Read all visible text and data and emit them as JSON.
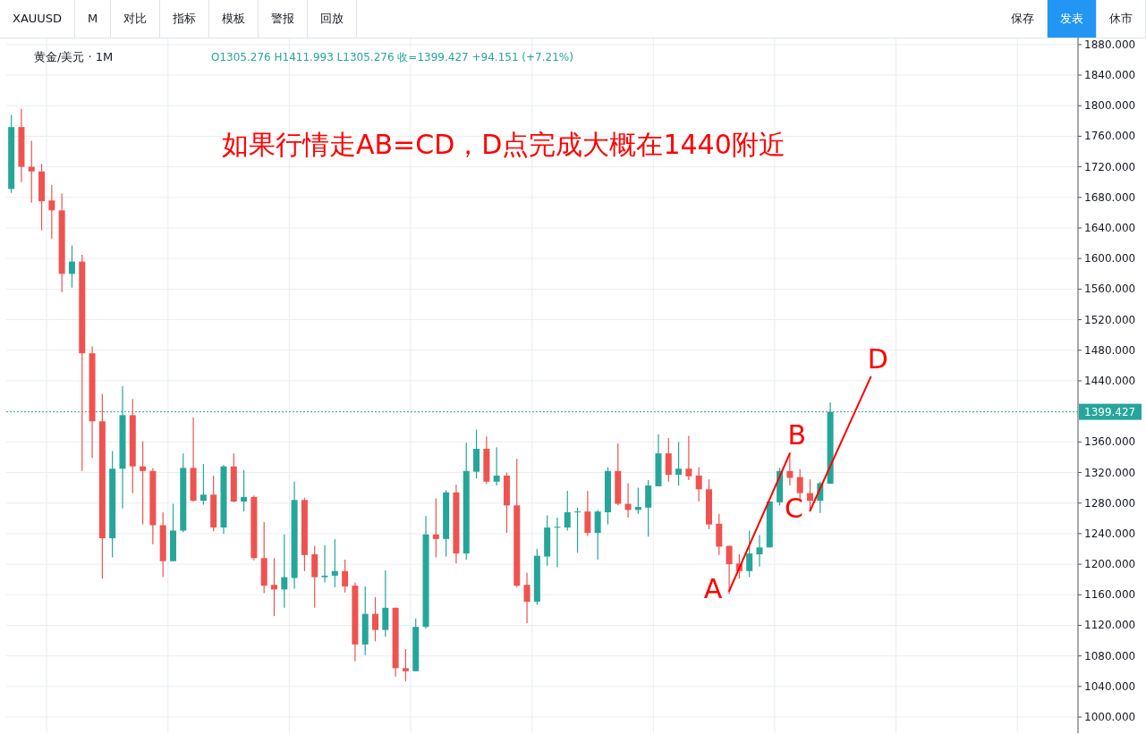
{
  "chart_data": {
    "type": "candlestick",
    "title": "如果行情走AB=CD，D点完成大概在1440附近",
    "subtitle": "黄金/美元 · 1M",
    "categories": [
      null,
      null,
      null,
      null,
      null,
      null,
      null,
      null,
      null,
      null,
      null,
      null,
      null,
      null,
      null,
      null,
      null,
      null,
      null,
      null,
      null,
      null,
      null,
      null,
      null,
      null,
      null,
      null,
      null,
      null,
      null,
      null,
      null,
      null,
      null,
      null,
      null,
      null,
      null,
      null,
      null,
      null,
      null,
      null,
      null,
      null,
      null,
      null,
      null,
      null,
      null,
      null,
      null,
      null,
      null,
      null,
      null,
      null,
      null,
      null,
      null,
      null,
      null,
      null,
      null,
      null,
      null,
      null,
      null,
      null,
      null,
      null,
      null,
      null,
      null,
      null,
      null,
      null,
      null,
      null,
      null,
      null,
      null,
      null,
      null,
      null,
      null,
      null,
      null,
      null,
      null,
      null,
      null,
      null,
      null,
      null,
      null,
      null,
      null,
      null,
      null,
      null,
      null,
      null,
      null,
      null
    ],
    "ohlc": [
      [
        1691,
        1788,
        1686,
        1772
      ],
      [
        1772,
        1796,
        1700,
        1720
      ],
      [
        1720,
        1754,
        1673,
        1714
      ],
      [
        1714,
        1724,
        1637,
        1675
      ],
      [
        1676,
        1696,
        1626,
        1663
      ],
      [
        1663,
        1685,
        1556,
        1580
      ],
      [
        1580,
        1617,
        1562,
        1596
      ],
      [
        1596,
        1605,
        1322,
        1476
      ],
      [
        1476,
        1485,
        1339,
        1387
      ],
      [
        1387,
        1423,
        1181,
        1234
      ],
      [
        1234,
        1348,
        1209,
        1325
      ],
      [
        1325,
        1433,
        1273,
        1395
      ],
      [
        1395,
        1416,
        1293,
        1328
      ],
      [
        1328,
        1361,
        1252,
        1322
      ],
      [
        1322,
        1326,
        1226,
        1251
      ],
      [
        1251,
        1268,
        1183,
        1204
      ],
      [
        1204,
        1279,
        1204,
        1244
      ],
      [
        1244,
        1345,
        1242,
        1326
      ],
      [
        1326,
        1392,
        1282,
        1283
      ],
      [
        1283,
        1331,
        1278,
        1291
      ],
      [
        1291,
        1316,
        1243,
        1248
      ],
      [
        1248,
        1330,
        1240,
        1328
      ],
      [
        1328,
        1345,
        1281,
        1282
      ],
      [
        1282,
        1323,
        1269,
        1288
      ],
      [
        1288,
        1290,
        1205,
        1208
      ],
      [
        1208,
        1255,
        1162,
        1172
      ],
      [
        1173,
        1208,
        1132,
        1167
      ],
      [
        1167,
        1239,
        1143,
        1183
      ],
      [
        1182,
        1308,
        1168,
        1284
      ],
      [
        1284,
        1287,
        1191,
        1212
      ],
      [
        1213,
        1224,
        1143,
        1183
      ],
      [
        1183,
        1225,
        1176,
        1185
      ],
      [
        1185,
        1233,
        1170,
        1191
      ],
      [
        1191,
        1206,
        1163,
        1171
      ],
      [
        1172,
        1176,
        1073,
        1095
      ],
      [
        1095,
        1171,
        1081,
        1135
      ],
      [
        1135,
        1157,
        1099,
        1114
      ],
      [
        1114,
        1192,
        1105,
        1143
      ],
      [
        1143,
        1143,
        1053,
        1064
      ],
      [
        1064,
        1089,
        1047,
        1060
      ],
      [
        1060,
        1129,
        1060,
        1118
      ],
      [
        1118,
        1263,
        1116,
        1239
      ],
      [
        1239,
        1286,
        1209,
        1233
      ],
      [
        1233,
        1297,
        1210,
        1294
      ],
      [
        1294,
        1304,
        1201,
        1214
      ],
      [
        1214,
        1359,
        1206,
        1322
      ],
      [
        1321,
        1376,
        1312,
        1351
      ],
      [
        1351,
        1367,
        1305,
        1308
      ],
      [
        1308,
        1353,
        1303,
        1316
      ],
      [
        1316,
        1320,
        1241,
        1277
      ],
      [
        1277,
        1338,
        1170,
        1172
      ],
      [
        1173,
        1189,
        1123,
        1151
      ],
      [
        1151,
        1220,
        1147,
        1211
      ],
      [
        1210,
        1264,
        1198,
        1248
      ],
      [
        1248,
        1261,
        1196,
        1249
      ],
      [
        1248,
        1296,
        1244,
        1268
      ],
      [
        1268,
        1274,
        1215,
        1269
      ],
      [
        1269,
        1296,
        1237,
        1241
      ],
      [
        1241,
        1271,
        1206,
        1269
      ],
      [
        1268,
        1327,
        1252,
        1322
      ],
      [
        1322,
        1358,
        1277,
        1279
      ],
      [
        1279,
        1306,
        1261,
        1271
      ],
      [
        1271,
        1300,
        1266,
        1275
      ],
      [
        1274,
        1310,
        1236,
        1303
      ],
      [
        1302,
        1370,
        1302,
        1345
      ],
      [
        1345,
        1365,
        1308,
        1317
      ],
      [
        1317,
        1360,
        1303,
        1325
      ],
      [
        1325,
        1368,
        1310,
        1315
      ],
      [
        1316,
        1327,
        1282,
        1298
      ],
      [
        1298,
        1311,
        1246,
        1252
      ],
      [
        1253,
        1266,
        1212,
        1223
      ],
      [
        1224,
        1224,
        1161,
        1200
      ],
      [
        1201,
        1213,
        1181,
        1191
      ],
      [
        1191,
        1244,
        1183,
        1214
      ],
      [
        1213,
        1238,
        1197,
        1222
      ],
      [
        1222,
        1282,
        1222,
        1282
      ],
      [
        1281,
        1326,
        1277,
        1322
      ],
      [
        1322,
        1343,
        1303,
        1313
      ],
      [
        1314,
        1324,
        1281,
        1293
      ],
      [
        1293,
        1311,
        1270,
        1283
      ],
      [
        1283,
        1308,
        1267,
        1306
      ],
      [
        1305.276,
        1411.993,
        1305.276,
        1399.427
      ],
      null,
      null,
      null,
      null,
      null,
      null,
      null,
      null,
      null,
      null,
      null,
      null,
      null,
      null,
      null,
      null,
      null,
      null,
      null,
      null,
      null,
      null,
      null,
      null
    ],
    "series": [
      {
        "type": "line",
        "color": "#ff0000",
        "values": [
          null,
          null,
          null,
          null,
          null,
          null,
          null,
          null,
          null,
          null,
          null,
          null,
          null,
          null,
          null,
          null,
          null,
          null,
          null,
          null,
          null,
          null,
          null,
          null,
          null,
          null,
          null,
          null,
          null,
          null,
          null,
          null,
          null,
          null,
          null,
          null,
          null,
          null,
          null,
          null,
          null,
          null,
          null,
          null,
          null,
          null,
          null,
          null,
          null,
          null,
          null,
          null,
          null,
          null,
          null,
          null,
          null,
          null,
          null,
          null,
          null,
          null,
          null,
          null,
          null,
          null,
          null,
          null,
          null,
          null,
          null,
          1165,
          null,
          null,
          null,
          null,
          null,
          1345,
          null,
          null,
          null,
          null,
          null,
          null,
          null,
          null,
          null,
          null,
          null,
          null,
          null,
          null,
          null,
          null,
          null,
          null,
          null,
          null,
          null,
          null,
          null,
          null,
          null,
          null,
          null,
          null
        ]
      },
      {
        "type": "line",
        "color": "#ff0000",
        "values": [
          null,
          null,
          null,
          null,
          null,
          null,
          null,
          null,
          null,
          null,
          null,
          null,
          null,
          null,
          null,
          null,
          null,
          null,
          null,
          null,
          null,
          null,
          null,
          null,
          null,
          null,
          null,
          null,
          null,
          null,
          null,
          null,
          null,
          null,
          null,
          null,
          null,
          null,
          null,
          null,
          null,
          null,
          null,
          null,
          null,
          null,
          null,
          null,
          null,
          null,
          null,
          null,
          null,
          null,
          null,
          null,
          null,
          null,
          null,
          null,
          null,
          null,
          null,
          null,
          null,
          null,
          null,
          null,
          null,
          null,
          null,
          null,
          null,
          null,
          null,
          null,
          null,
          null,
          null,
          1270,
          null,
          null,
          null,
          null,
          null,
          1445,
          null,
          null,
          null,
          null,
          null,
          null,
          null,
          null,
          null,
          null,
          null,
          null,
          null,
          null,
          null,
          null,
          null,
          null,
          null,
          null
        ]
      }
    ],
    "ylim": [
      979,
      1888
    ],
    "yticks": [
      {
        "value": 1000,
        "label": "1000.000"
      },
      {
        "value": 1040,
        "label": "1040.000"
      },
      {
        "value": 1080,
        "label": "1080.000"
      },
      {
        "value": 1120,
        "label": "1120.000"
      },
      {
        "value": 1160,
        "label": "1160.000"
      },
      {
        "value": 1200,
        "label": "1200.000"
      },
      {
        "value": 1240,
        "label": "1240.000"
      },
      {
        "value": 1280,
        "label": "1280.000"
      },
      {
        "value": 1320,
        "label": "1320.000"
      },
      {
        "value": 1360,
        "label": "1360.000"
      },
      {
        "value": 1440,
        "label": "1440.000"
      },
      {
        "value": 1480,
        "label": "1480.000"
      },
      {
        "value": 1520,
        "label": "1520.000"
      },
      {
        "value": 1560,
        "label": "1560.000"
      },
      {
        "value": 1600,
        "label": "1600.000"
      },
      {
        "value": 1640,
        "label": "1640.000"
      },
      {
        "value": 1680,
        "label": "1680.000"
      },
      {
        "value": 1720,
        "label": "1720.000"
      },
      {
        "value": 1760,
        "label": "1760.000"
      },
      {
        "value": 1800,
        "label": "1800.000"
      },
      {
        "value": 1840,
        "label": "1840.000"
      },
      {
        "value": 1880,
        "label": "1880.000"
      }
    ],
    "ref_lines": [
      {
        "axis": "y",
        "value": 1399.427,
        "label": "1399.427",
        "color": "#26a69a",
        "line_style": "dotted"
      }
    ],
    "grid": true,
    "annotations": [
      "O1305.276  H1411.993  L1305.276  收=1399.427  +94.151 (+7.21%)",
      "XAUUSD",
      "M",
      "对比",
      "指标",
      "模板",
      "警报",
      "回放",
      "保存",
      "发表",
      "休市",
      "A",
      "B",
      "C",
      "D"
    ]
  }
}
